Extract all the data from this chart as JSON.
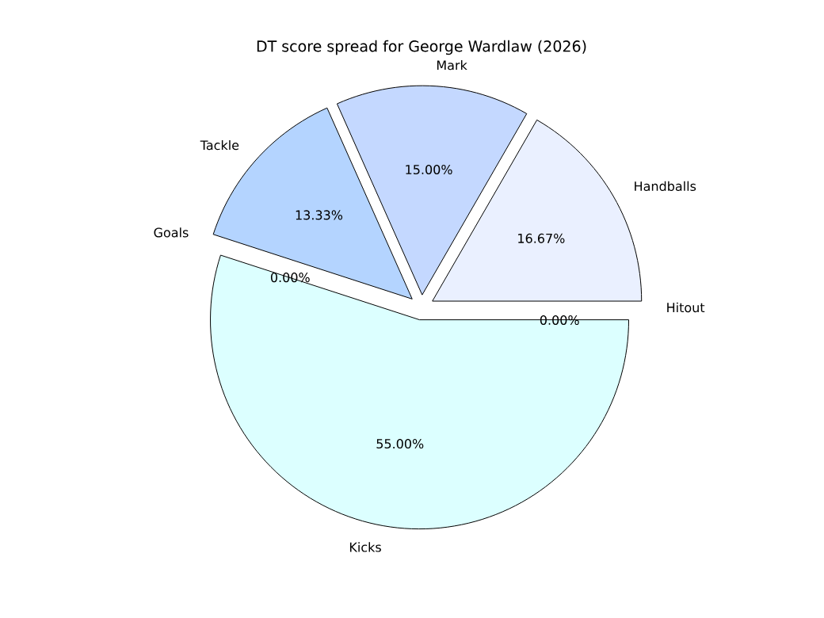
{
  "chart_data": {
    "type": "pie",
    "title": "DT score spread for George Wardlaw (2026)",
    "categories": [
      "Kicks",
      "Hitout",
      "Handballs",
      "Mark",
      "Tackle",
      "Goals"
    ],
    "values": [
      55,
      0,
      16.67,
      15,
      13.33,
      0
    ],
    "value_labels": [
      "55.00%",
      "0.00%",
      "16.67%",
      "15.00%",
      "13.33%",
      "0.00%"
    ],
    "colors": [
      "#dcffff",
      "#d0e4ff",
      "#eaf0ff",
      "#c4d8ff",
      "#b4d4ff",
      "#a8ccff"
    ]
  }
}
